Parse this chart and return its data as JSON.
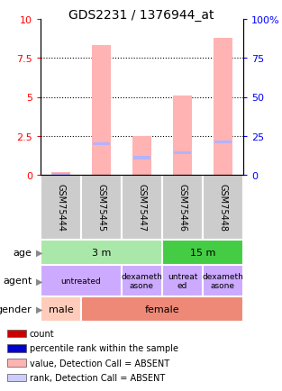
{
  "title": "GDS2231 / 1376944_at",
  "samples": [
    "GSM75444",
    "GSM75445",
    "GSM75447",
    "GSM75446",
    "GSM75448"
  ],
  "bar_values": [
    0.2,
    8.3,
    2.5,
    5.1,
    8.8
  ],
  "rank_markers": [
    0.05,
    2.0,
    1.1,
    1.4,
    2.1
  ],
  "ylim": [
    0,
    10
  ],
  "y_left_ticks": [
    0,
    2.5,
    5,
    7.5,
    10
  ],
  "y_right_ticks": [
    0,
    25,
    50,
    75,
    100
  ],
  "bar_color": "#ffb3b3",
  "rank_color": "#b3b3ff",
  "age_groups": [
    {
      "label": "3 m",
      "start": 0,
      "end": 3,
      "color": "#aae8aa"
    },
    {
      "label": "15 m",
      "start": 3,
      "end": 5,
      "color": "#44cc44"
    }
  ],
  "agent_groups": [
    {
      "label": "untreated",
      "start": 0,
      "end": 2,
      "color": "#ccaaff"
    },
    {
      "label": "dexameth\nasone",
      "start": 2,
      "end": 3,
      "color": "#ccaaff"
    },
    {
      "label": "untreat\ned",
      "start": 3,
      "end": 4,
      "color": "#ccaaff"
    },
    {
      "label": "dexameth\nasone",
      "start": 4,
      "end": 5,
      "color": "#ccaaff"
    }
  ],
  "gender_groups": [
    {
      "label": "male",
      "start": 0,
      "end": 1,
      "color": "#ffccbb"
    },
    {
      "label": "female",
      "start": 1,
      "end": 5,
      "color": "#ee8877"
    }
  ],
  "row_labels": [
    "age",
    "agent",
    "gender"
  ],
  "legend_items": [
    {
      "color": "#cc0000",
      "label": "count"
    },
    {
      "color": "#0000cc",
      "label": "percentile rank within the sample"
    },
    {
      "color": "#ffb3b3",
      "label": "value, Detection Call = ABSENT"
    },
    {
      "color": "#ccccff",
      "label": "rank, Detection Call = ABSENT"
    }
  ],
  "sample_box_color": "#cccccc",
  "title_fontsize": 10,
  "tick_fontsize": 8
}
